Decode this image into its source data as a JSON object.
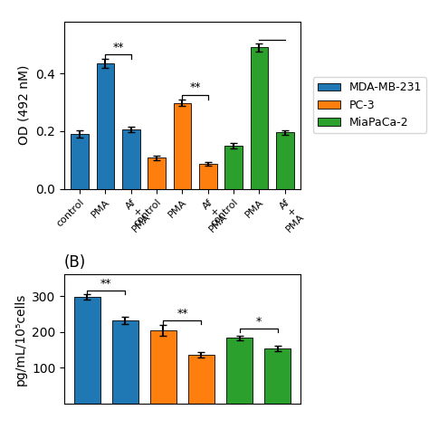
{
  "chart_data": [
    {
      "type": "bar",
      "ylabel": "OD (492 nM)",
      "categories": [
        "control",
        "PMA",
        "Af\n+\nPMA",
        "control",
        "PMA",
        "Af\n+\nPMA",
        "control",
        "PMA",
        "Af\n+\nPMA"
      ],
      "series": [
        {
          "name": "MDA-MB-231",
          "values": [
            0.19,
            0.435,
            0.205,
            null,
            null,
            null,
            null,
            null,
            null
          ],
          "errors": [
            0.012,
            0.015,
            0.01,
            null,
            null,
            null,
            null,
            null,
            null
          ]
        },
        {
          "name": "PC-3",
          "values": [
            null,
            null,
            null,
            0.107,
            0.298,
            0.087,
            null,
            null,
            null
          ],
          "errors": [
            null,
            null,
            null,
            0.008,
            0.01,
            0.007,
            null,
            null,
            null
          ]
        },
        {
          "name": "MiaPaCa-2",
          "values": [
            null,
            null,
            null,
            null,
            null,
            null,
            0.15,
            0.49,
            0.195
          ],
          "errors": [
            null,
            null,
            null,
            null,
            null,
            null,
            0.01,
            0.015,
            0.008
          ]
        }
      ],
      "ylim": [
        0,
        0.58
      ],
      "yticks": [
        0.0,
        0.2,
        0.4
      ],
      "legend": "center left",
      "annotations": [
        {
          "text": "**",
          "x1": 1,
          "x2": 2,
          "y": 0.466
        },
        {
          "text": "**",
          "x1": 4,
          "x2": 5,
          "y": 0.325
        },
        {
          "x1": 7,
          "x2": 8,
          "y": 0.515
        }
      ]
    },
    {
      "type": "bar",
      "title": "(B)",
      "ylabel": "pg/mL/10⁵cells",
      "categories": [
        null,
        null,
        null,
        null,
        null,
        null
      ],
      "series": [
        {
          "name": "MDA-MB-231",
          "values": [
            297,
            232,
            null,
            null,
            null,
            null
          ],
          "errors": [
            8,
            10,
            null,
            null,
            null,
            null
          ]
        },
        {
          "name": "PC-3",
          "values": [
            null,
            null,
            205,
            135,
            null,
            null
          ],
          "errors": [
            null,
            null,
            15,
            8,
            null,
            null
          ]
        },
        {
          "name": "MiaPaCa-2",
          "values": [
            null,
            null,
            null,
            null,
            183,
            153
          ],
          "errors": [
            null,
            null,
            null,
            null,
            7,
            8
          ]
        }
      ],
      "ylim": [
        0,
        360
      ],
      "yticks": [
        100,
        200,
        300
      ],
      "tick_labels": "y",
      "annotations": [
        {
          "text": "**",
          "x1": 0,
          "x2": 1,
          "y": 316
        },
        {
          "text": "**",
          "x1": 2,
          "x2": 3,
          "y": 232
        },
        {
          "text": "*",
          "x1": 4,
          "x2": 5,
          "y": 208
        }
      ]
    }
  ]
}
